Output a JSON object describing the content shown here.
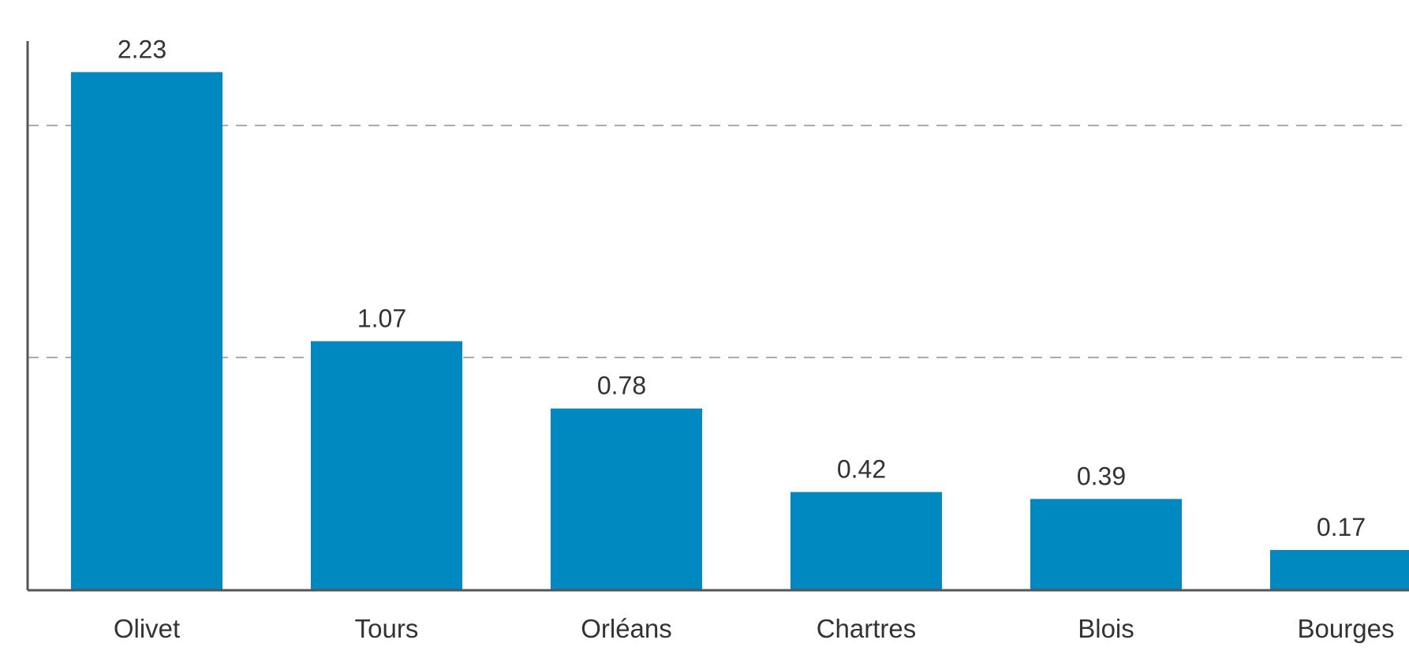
{
  "chart_data": {
    "type": "bar",
    "categories": [
      "Olivet",
      "Tours",
      "Orléans",
      "Chartres",
      "Blois",
      "Bourges"
    ],
    "values": [
      2.23,
      1.07,
      0.78,
      0.42,
      0.39,
      0.17
    ],
    "data_labels": [
      "2.23",
      "1.07",
      "0.78",
      "0.42",
      "0.39",
      "0.17"
    ],
    "ylim": [
      0,
      2.35
    ],
    "gridlines": [
      1.0,
      2.0
    ],
    "grid": true,
    "bar_color": "#0088c0",
    "axis_color": "#555555",
    "grid_color": "#aaaaaa",
    "text_color": "#333333"
  }
}
